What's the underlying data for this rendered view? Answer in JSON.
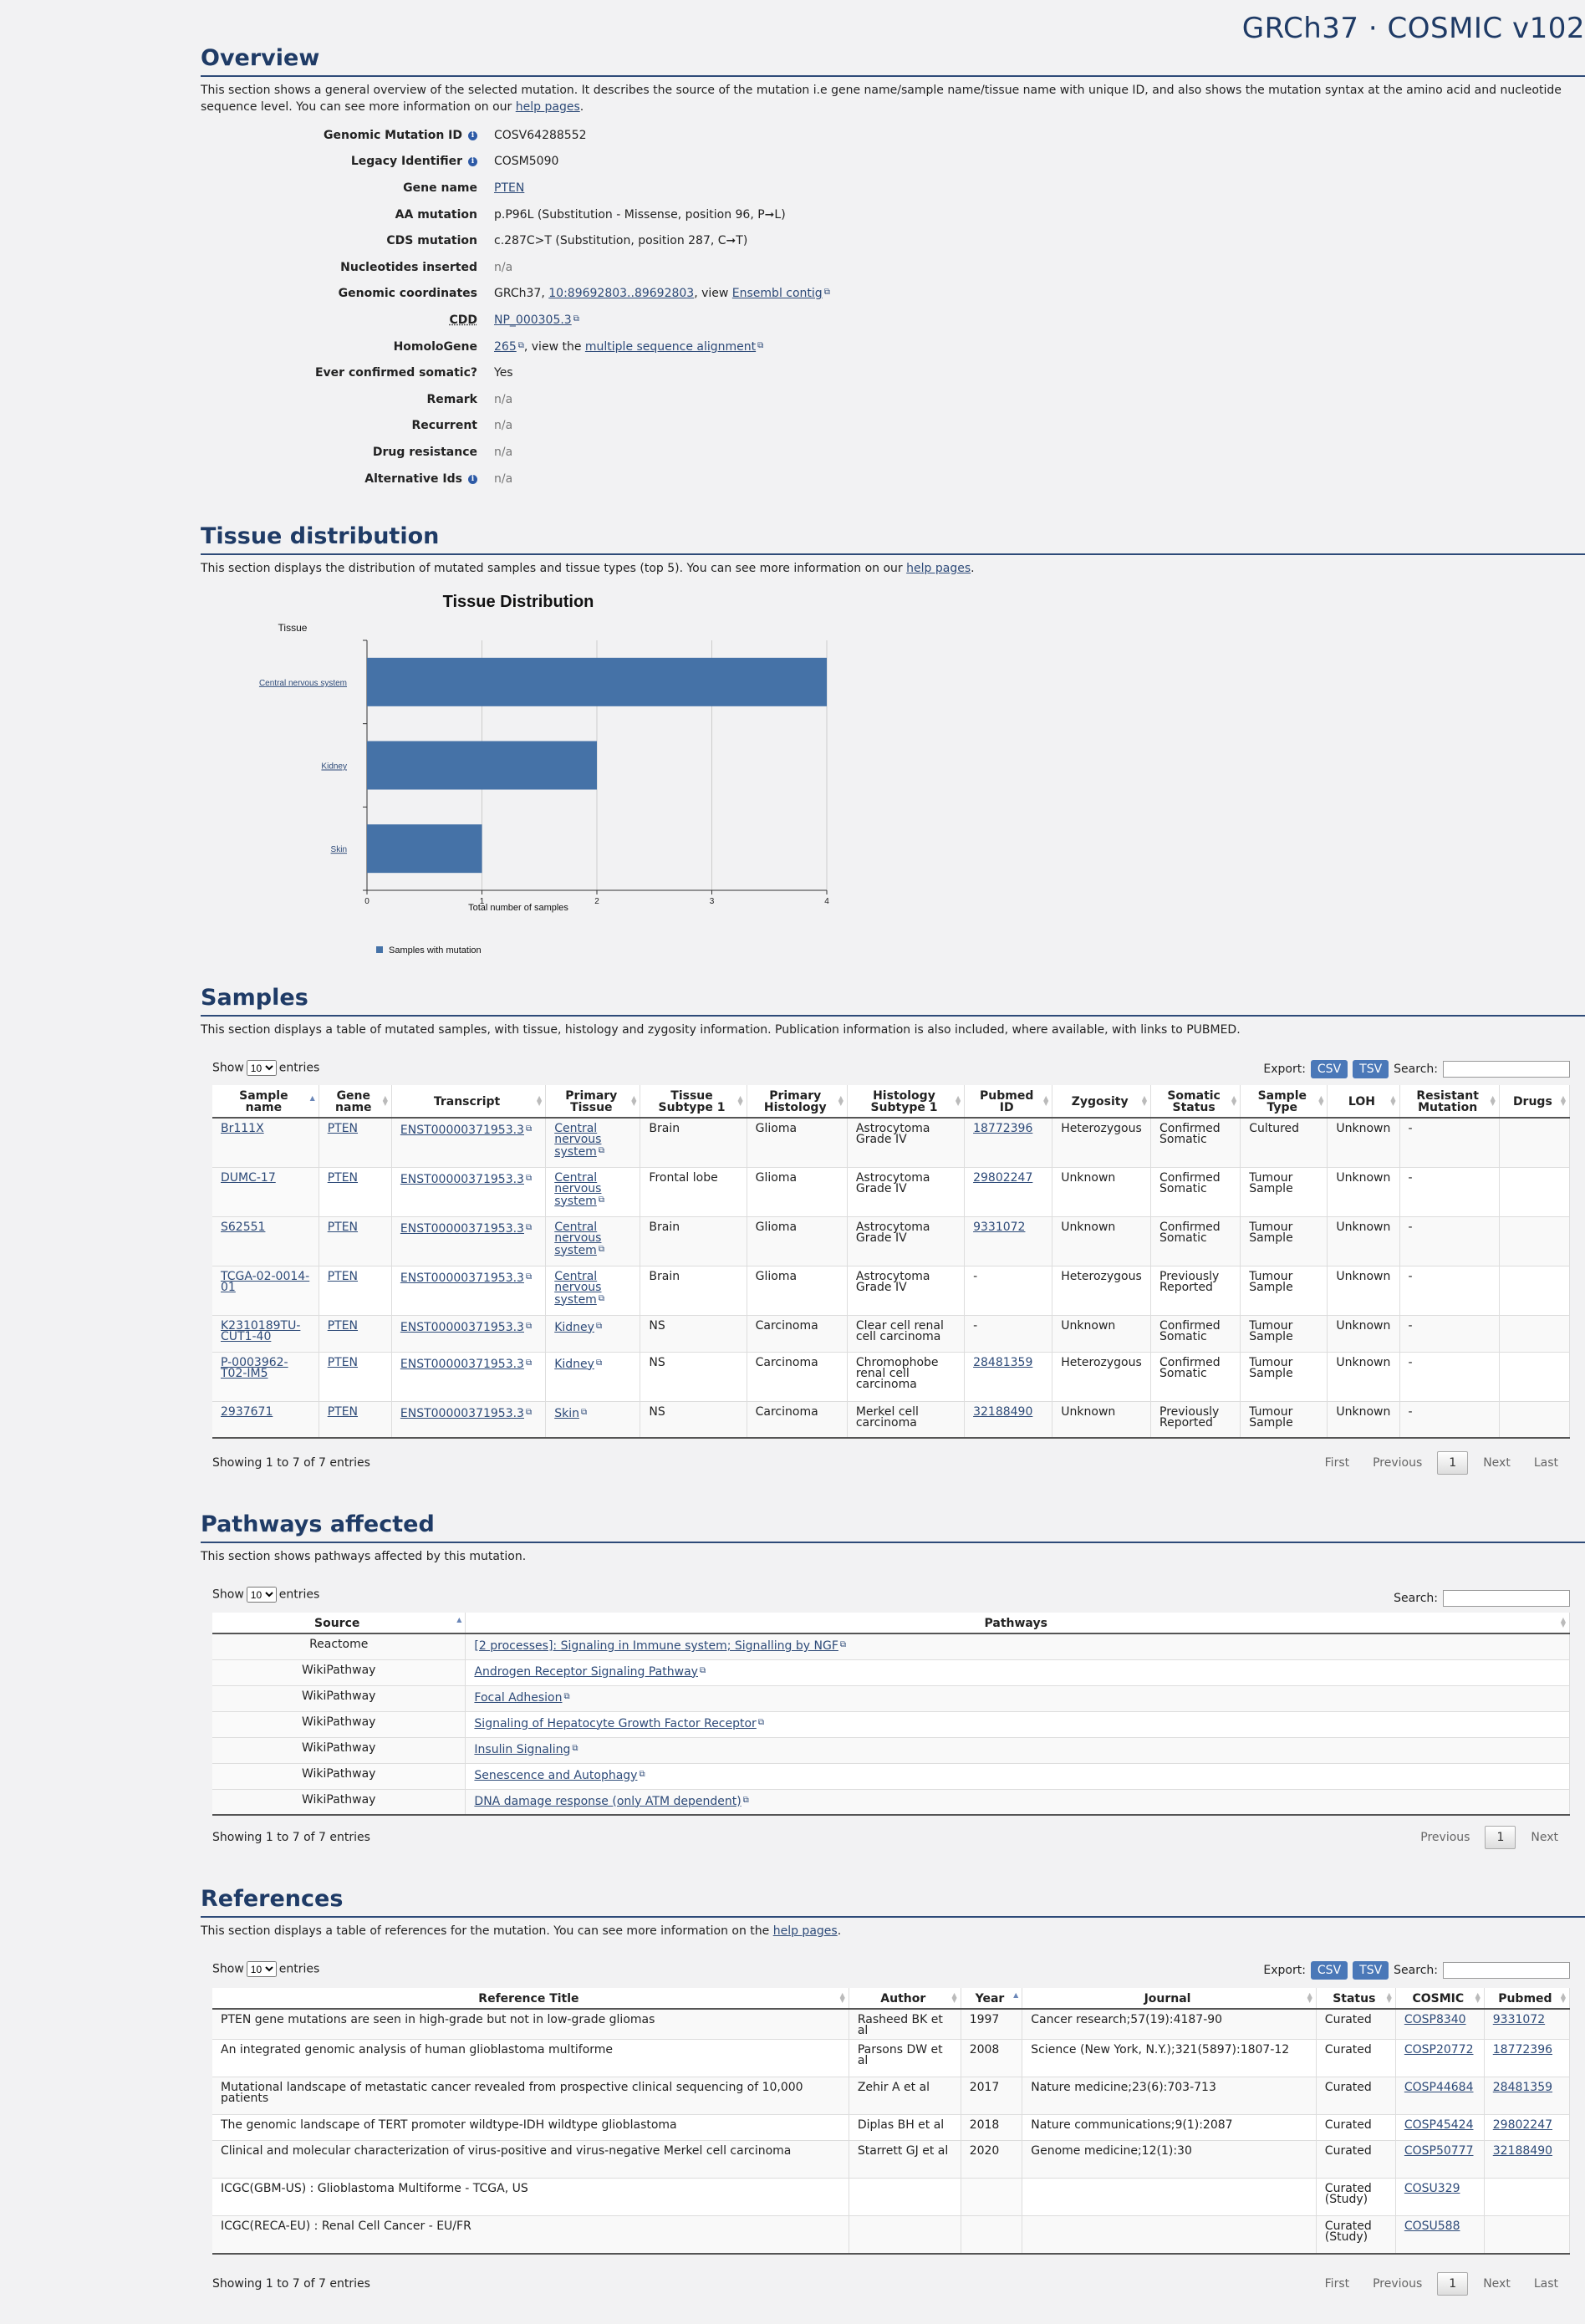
{
  "brand": "GRCh37 · COSMIC v102",
  "overview": {
    "title": "Overview",
    "desc_before": "This section shows a general overview of the selected mutation. It describes the source of the mutation i.e gene name/sample name/tissue name with unique ID, and also shows the mutation syntax at the amino acid and nucleotide sequence level. You can see more information on our ",
    "help_link": "help pages",
    "desc_after": ".",
    "genomic_mutation_id": {
      "label": "Genomic Mutation ID",
      "value": "COSV64288552"
    },
    "legacy_identifier": {
      "label": "Legacy Identifier",
      "value": "COSM5090"
    },
    "gene_name": {
      "label": "Gene name",
      "value": "PTEN"
    },
    "aa_mutation": {
      "label": "AA mutation",
      "value": "p.P96L (Substitution - Missense, position 96, P➞L)"
    },
    "cds_mutation": {
      "label": "CDS mutation",
      "value": "c.287C>T (Substitution, position 287, C➞T)"
    },
    "nucleotides_inserted": {
      "label": "Nucleotides inserted",
      "value": "n/a"
    },
    "genomic_coordinates": {
      "label": "Genomic coordinates",
      "prefix": "GRCh37, ",
      "link": "10:89692803..89692803",
      "middle": ", view ",
      "link2": "Ensembl contig"
    },
    "cdd": {
      "label": "CDD",
      "link": "NP_000305.3"
    },
    "homologene": {
      "label": "HomoloGene",
      "link": "265",
      "middle": ", view the ",
      "link2": "multiple sequence alignment"
    },
    "ever_confirmed_somatic": {
      "label": "Ever confirmed somatic?",
      "value": "Yes"
    },
    "remark": {
      "label": "Remark",
      "value": "n/a"
    },
    "recurrent": {
      "label": "Recurrent",
      "value": "n/a"
    },
    "drug_resistance": {
      "label": "Drug resistance",
      "value": "n/a"
    },
    "alternative_ids": {
      "label": "Alternative Ids",
      "value": "n/a"
    }
  },
  "tissue": {
    "title": "Tissue distribution",
    "desc_before": "This section displays the distribution of mutated samples and tissue types (top 5). You can see more information on our ",
    "help_link": "help pages",
    "desc_after": "."
  },
  "chart_data": {
    "type": "bar",
    "orientation": "horizontal",
    "title": "Tissue Distribution",
    "ylabel": "Tissue",
    "xlabel": "Total number of samples",
    "categories": [
      "Central nervous system",
      "Kidney",
      "Skin"
    ],
    "values": [
      4,
      2,
      1
    ],
    "xlim": [
      0,
      4
    ],
    "xticks": [
      "0",
      "1",
      "2",
      "3",
      "4"
    ],
    "grid": true,
    "legend": "bottom-left",
    "series": [
      {
        "name": "Samples with mutation",
        "values": [
          4,
          2,
          1
        ]
      }
    ],
    "color": "#4572a7"
  },
  "samples": {
    "title": "Samples",
    "desc": "This section displays a table of mutated samples, with tissue, histology and zygosity information. Publication information is also included, where available, with links to PUBMED.",
    "show": "Show",
    "entries": "entries",
    "length": "10",
    "export": "Export:",
    "csv": "CSV",
    "tsv": "TSV",
    "search": "Search:",
    "columns": [
      "Sample name",
      "Gene name",
      "Transcript",
      "Primary Tissue",
      "Tissue Subtype 1",
      "Primary Histology",
      "Histology Subtype 1",
      "Pubmed ID",
      "Zygosity",
      "Somatic Status",
      "Sample Type",
      "LOH",
      "Resistant Mutation",
      "Drugs"
    ],
    "rows": [
      [
        "Br111X",
        "PTEN",
        "ENST00000371953.3",
        "Central nervous system",
        "Brain",
        "Glioma",
        "Astrocytoma Grade IV",
        "18772396",
        "Heterozygous",
        "Confirmed Somatic",
        "Cultured",
        "Unknown",
        "-",
        ""
      ],
      [
        "DUMC-17",
        "PTEN",
        "ENST00000371953.3",
        "Central nervous system",
        "Frontal lobe",
        "Glioma",
        "Astrocytoma Grade IV",
        "29802247",
        "Unknown",
        "Confirmed Somatic",
        "Tumour Sample",
        "Unknown",
        "-",
        ""
      ],
      [
        "S62551",
        "PTEN",
        "ENST00000371953.3",
        "Central nervous system",
        "Brain",
        "Glioma",
        "Astrocytoma Grade IV",
        "9331072",
        "Unknown",
        "Confirmed Somatic",
        "Tumour Sample",
        "Unknown",
        "-",
        ""
      ],
      [
        "TCGA-02-0014-01",
        "PTEN",
        "ENST00000371953.3",
        "Central nervous system",
        "Brain",
        "Glioma",
        "Astrocytoma Grade IV",
        "-",
        "Heterozygous",
        "Previously Reported",
        "Tumour Sample",
        "Unknown",
        "-",
        ""
      ],
      [
        "K2310189TU-CUT1-40",
        "PTEN",
        "ENST00000371953.3",
        "Kidney",
        "NS",
        "Carcinoma",
        "Clear cell renal cell carcinoma",
        "-",
        "Unknown",
        "Confirmed Somatic",
        "Tumour Sample",
        "Unknown",
        "-",
        ""
      ],
      [
        "P-0003962-T02-IM5",
        "PTEN",
        "ENST00000371953.3",
        "Kidney",
        "NS",
        "Carcinoma",
        "Chromophobe renal cell carcinoma",
        "28481359",
        "Heterozygous",
        "Confirmed Somatic",
        "Tumour Sample",
        "Unknown",
        "-",
        ""
      ],
      [
        "2937671",
        "PTEN",
        "ENST00000371953.3",
        "Skin",
        "NS",
        "Carcinoma",
        "Merkel cell carcinoma",
        "32188490",
        "Unknown",
        "Previously Reported",
        "Tumour Sample",
        "Unknown",
        "-",
        ""
      ]
    ],
    "info": "Showing 1 to 7 of 7 entries",
    "pager": [
      "First",
      "Previous",
      "1",
      "Next",
      "Last"
    ]
  },
  "pathways": {
    "title": "Pathways affected",
    "desc": "This section shows pathways affected by this mutation.",
    "show": "Show",
    "entries": "entries",
    "length": "10",
    "search": "Search:",
    "columns": [
      "Source",
      "Pathways"
    ],
    "rows": [
      [
        "Reactome",
        "[2 processes]: Signaling in Immune system; Signalling by NGF"
      ],
      [
        "WikiPathway",
        "Androgen Receptor Signaling Pathway"
      ],
      [
        "WikiPathway",
        "Focal Adhesion"
      ],
      [
        "WikiPathway",
        "Signaling of Hepatocyte Growth Factor Receptor"
      ],
      [
        "WikiPathway",
        "Insulin Signaling"
      ],
      [
        "WikiPathway",
        "Senescence and Autophagy"
      ],
      [
        "WikiPathway",
        "DNA damage response (only ATM dependent)"
      ]
    ],
    "info": "Showing 1 to 7 of 7 entries",
    "pager": [
      "Previous",
      "1",
      "Next"
    ]
  },
  "references": {
    "title": "References",
    "desc_before": "This section displays a table of references for the mutation. You can see more information on the ",
    "help_link": "help pages",
    "desc_after": ".",
    "show": "Show",
    "entries": "entries",
    "length": "10",
    "export": "Export:",
    "csv": "CSV",
    "tsv": "TSV",
    "search": "Search:",
    "columns": [
      "Reference Title",
      "Author",
      "Year",
      "Journal",
      "Status",
      "COSMIC",
      "Pubmed"
    ],
    "rows": [
      [
        "PTEN gene mutations are seen in high-grade but not in low-grade gliomas",
        "Rasheed BK et al",
        "1997",
        "Cancer research;57(19):4187-90",
        "Curated",
        "COSP8340",
        "9331072"
      ],
      [
        "An integrated genomic analysis of human glioblastoma multiforme",
        "Parsons DW et al",
        "2008",
        "Science (New York, N.Y.);321(5897):1807-12",
        "Curated",
        "COSP20772",
        "18772396"
      ],
      [
        "Mutational landscape of metastatic cancer revealed from prospective clinical sequencing of 10,000 patients",
        "Zehir A et al",
        "2017",
        "Nature medicine;23(6):703-713",
        "Curated",
        "COSP44684",
        "28481359"
      ],
      [
        "The genomic landscape of TERT promoter wildtype-IDH wildtype glioblastoma",
        "Diplas BH et al",
        "2018",
        "Nature communications;9(1):2087",
        "Curated",
        "COSP45424",
        "29802247"
      ],
      [
        "Clinical and molecular characterization of virus-positive and virus-negative Merkel cell carcinoma",
        "Starrett GJ et al",
        "2020",
        "Genome medicine;12(1):30",
        "Curated",
        "COSP50777",
        "32188490"
      ],
      [
        "ICGC(GBM-US) : Glioblastoma Multiforme - TCGA, US",
        "",
        "",
        "",
        "Curated (Study)",
        "COSU329",
        ""
      ],
      [
        "ICGC(RECA-EU) : Renal Cell Cancer - EU/FR",
        "",
        "",
        "",
        "Curated (Study)",
        "COSU588",
        ""
      ]
    ],
    "info": "Showing 1 to 7 of 7 entries",
    "pager": [
      "First",
      "Previous",
      "1",
      "Next",
      "Last"
    ]
  }
}
